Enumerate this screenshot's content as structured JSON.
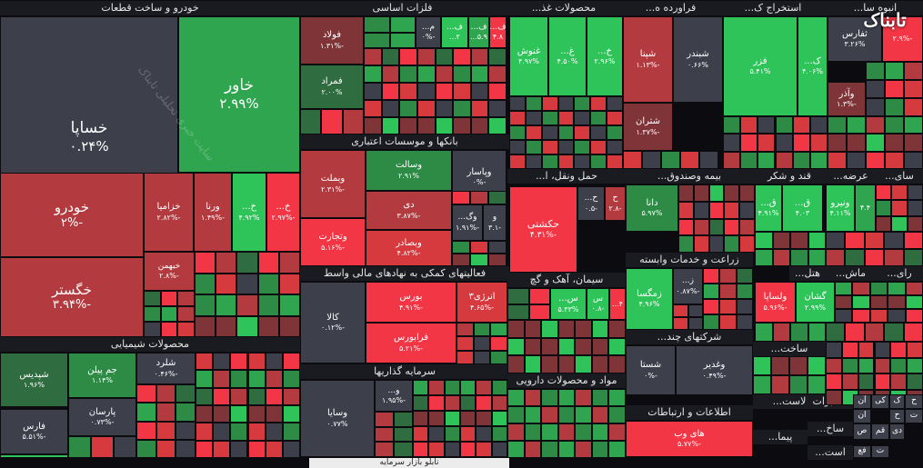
{
  "logo": {
    "text": "تابناک"
  },
  "watermark": "سایت خبری تحلیلی تابناک",
  "bottom_bar": {
    "text": "تابلو بازار سرمایه"
  },
  "sections": [
    "خودرو و ساخت قطعات",
    "فلزات اساسی",
    "محصولات غذ...",
    "فراورده ه...",
    "استخراج ک...",
    "انبوه سا...",
    "بانکها و موسسات اعتباری",
    "حمل ونقل، ا...",
    "بیمه وصندوق...",
    "قند و شکر",
    "عرضه...",
    "سای...",
    "فعالیتهای کمکی به نهادهای مالی واسط",
    "زراعت و خدمات وابسته",
    "سیمان، آهک و گچ",
    "هتل...",
    "ماش...",
    "رای...",
    "شرکتهای چند...",
    "محصولات شیمیایی",
    "سرمایه گذاریها",
    "مواد و محصولات دارویی",
    "ساخت...",
    "اطلاعات و ارتباطات",
    "لاست...",
    "مخابرات",
    "ساخ...",
    "پیما...",
    "است..."
  ],
  "tiles": [
    {
      "name": "خساپا",
      "pct": "۰.۲۴%"
    },
    {
      "name": "خاور",
      "pct": "۲.۹۹%"
    },
    {
      "name": "خودرو",
      "pct": "-۲%"
    },
    {
      "name": "خگستر",
      "pct": "-۳.۹۴%"
    },
    {
      "name": "خزامیا",
      "pct": "-۲.۸۲%"
    },
    {
      "name": "ورنا",
      "pct": "-۱.۴۹%"
    },
    {
      "name": "خ...",
      "pct": "۴.۹۲%"
    },
    {
      "name": "خ...",
      "pct": "-۲.۹۷%"
    },
    {
      "name": "خبهمن",
      "pct": "-۲.۸%"
    },
    {
      "name": "فولاد",
      "pct": "-۱.۳۱%"
    },
    {
      "name": "فمراد",
      "pct": "۲.۰۰%"
    },
    {
      "name": "م...",
      "pct": "-۰%"
    },
    {
      "name": "ف...",
      "pct": "۲..."
    },
    {
      "name": "ف...",
      "pct": "۵.۹..."
    },
    {
      "name": "ف...",
      "pct": "۴.۸"
    },
    {
      "name": "غنوش",
      "pct": "۴.۹۷%"
    },
    {
      "name": "غ...",
      "pct": "۴.۵۰%"
    },
    {
      "name": "خ...",
      "pct": "۲.۹۶%"
    },
    {
      "name": "شپنا",
      "pct": "-۱.۱۳%"
    },
    {
      "name": "شبندر",
      "pct": "۰.۶۶%"
    },
    {
      "name": "شتران",
      "pct": "-۱.۳۷%"
    },
    {
      "name": "فزر",
      "pct": "۵.۴۱%"
    },
    {
      "name": "ک...",
      "pct": "۴.۰۶%"
    },
    {
      "name": "ثفارس",
      "pct": "۳.۲۶%"
    },
    {
      "name": "",
      "pct": "-۲.۹%"
    },
    {
      "name": "وآذر",
      "pct": "-۱.۳%"
    },
    {
      "name": "وبملت",
      "pct": "-۲.۳۱%"
    },
    {
      "name": "وسالت",
      "pct": "۲.۹۱%"
    },
    {
      "name": "وپاسار",
      "pct": "-۰%"
    },
    {
      "name": "دی",
      "pct": "-۳.۸۷%"
    },
    {
      "name": "وتجارت",
      "pct": "-۵.۱۶%"
    },
    {
      "name": "وبصادر",
      "pct": "-۴.۸۲%"
    },
    {
      "name": "وگ...",
      "pct": "-۱.۹۱%"
    },
    {
      "name": "و",
      "pct": "-۳.۱"
    },
    {
      "name": "حکشتی",
      "pct": "-۴.۳۱%"
    },
    {
      "name": "ح...",
      "pct": "-۰.۵"
    },
    {
      "name": "ح",
      "pct": "-۲.۸"
    },
    {
      "name": "دانا",
      "pct": "۵.۹۷%"
    },
    {
      "name": "ق...",
      "pct": "۴.۹۱%"
    },
    {
      "name": "ق...",
      "pct": "۴.۰۳"
    },
    {
      "name": "ونیرو",
      "pct": "۴.۱۱%"
    },
    {
      "name": "",
      "pct": "۴.۴"
    },
    {
      "name": "کالا",
      "pct": "-۰.۱۲%"
    },
    {
      "name": "بورس",
      "pct": "-۴.۹۱%"
    },
    {
      "name": "انرژی۳",
      "pct": "-۴.۶۵%"
    },
    {
      "name": "فرابورس",
      "pct": "-۵.۲۱%"
    },
    {
      "name": "زمگسا",
      "pct": "۴.۹۶%"
    },
    {
      "name": "ز...",
      "pct": "-۰.۸۷%"
    },
    {
      "name": "س...",
      "pct": "۵.۳۳%"
    },
    {
      "name": "س",
      "pct": "-۰.۸"
    },
    {
      "name": "",
      "pct": "۴..."
    },
    {
      "name": "ولساپا",
      "pct": "-۵.۹۶%"
    },
    {
      "name": "گشان",
      "pct": "۲.۹۹%"
    },
    {
      "name": "شستا",
      "pct": "-۰%"
    },
    {
      "name": "وغدیر",
      "pct": "-۰.۴۹%"
    },
    {
      "name": "شپدیس",
      "pct": "۱.۹۶%"
    },
    {
      "name": "جم پیلن",
      "pct": "۱.۱۴%"
    },
    {
      "name": "شلرد",
      "pct": "-۰.۴۶%"
    },
    {
      "name": "پارسان",
      "pct": "-۰.۷۳%"
    },
    {
      "name": "فارس",
      "pct": "-۵.۵۱%"
    },
    {
      "name": "وسایا",
      "pct": "۰.۷۷%"
    },
    {
      "name": "و...",
      "pct": "-۱.۹۵%"
    },
    {
      "name": "های وب",
      "pct": "-۵.۷۷%"
    }
  ],
  "small_labels": [
    "آن",
    "کی",
    "ان",
    "ح",
    "ک",
    "ح",
    "ص",
    "قم",
    "دی",
    "ت",
    "فع",
    "ت"
  ]
}
